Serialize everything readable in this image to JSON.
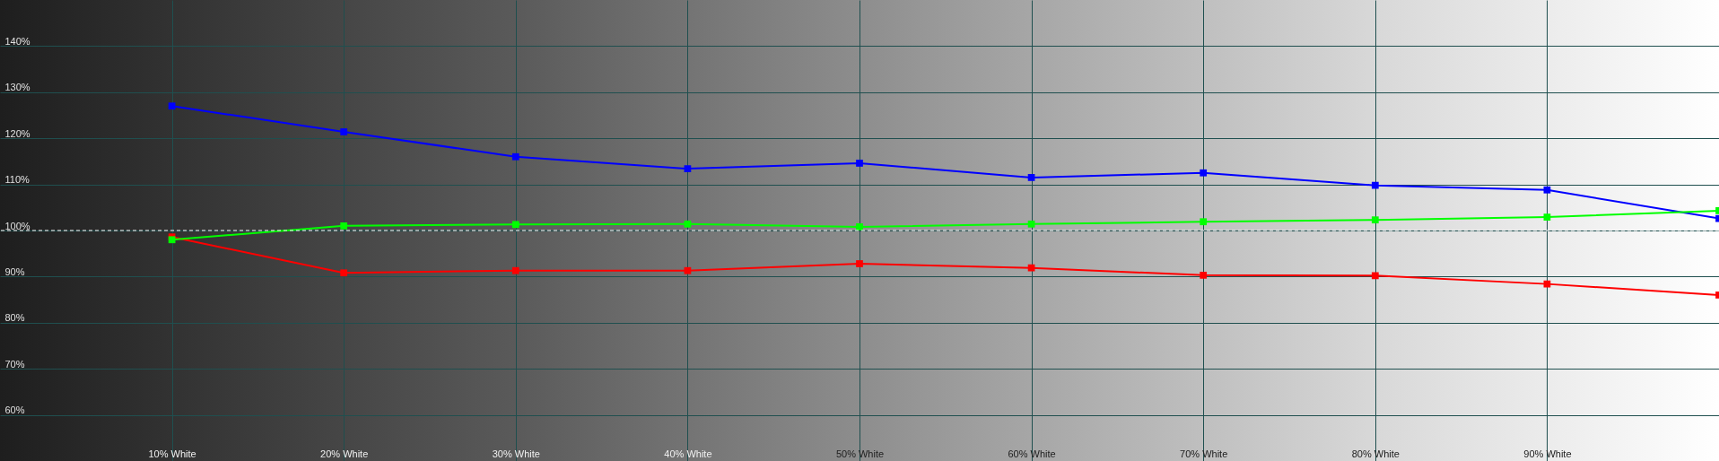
{
  "chart_data": {
    "type": "line",
    "x": [
      10,
      20,
      30,
      40,
      50,
      60,
      70,
      80,
      90,
      100
    ],
    "xlim": [
      0,
      100
    ],
    "xticks": [
      {
        "value": 10,
        "label": "10% White"
      },
      {
        "value": 20,
        "label": "20% White"
      },
      {
        "value": 30,
        "label": "30% White"
      },
      {
        "value": 40,
        "label": "40% White"
      },
      {
        "value": 50,
        "label": "50% White"
      },
      {
        "value": 60,
        "label": "60% White"
      },
      {
        "value": 70,
        "label": "70% White"
      },
      {
        "value": 80,
        "label": "80% White"
      },
      {
        "value": 90,
        "label": "90% White"
      }
    ],
    "ylim": [
      50,
      150
    ],
    "yticks": [
      {
        "value": 60,
        "label": "60%"
      },
      {
        "value": 70,
        "label": "70%"
      },
      {
        "value": 80,
        "label": "80%"
      },
      {
        "value": 90,
        "label": "90%"
      },
      {
        "value": 100,
        "label": "100%"
      },
      {
        "value": 110,
        "label": "110%"
      },
      {
        "value": 120,
        "label": "120%"
      },
      {
        "value": 130,
        "label": "130%"
      },
      {
        "value": 140,
        "label": "140%"
      }
    ],
    "series": [
      {
        "color": "#0000ff",
        "values": [
          127.0,
          121.4,
          116.0,
          113.4,
          114.6,
          111.5,
          112.5,
          109.8,
          108.8,
          102.6
        ]
      },
      {
        "color": "#00ff00",
        "values": [
          98.0,
          101.0,
          101.3,
          101.4,
          100.8,
          101.4,
          101.9,
          102.3,
          102.9,
          104.3
        ]
      },
      {
        "color": "#ff0000",
        "values": [
          98.6,
          90.8,
          91.3,
          91.3,
          92.8,
          91.9,
          90.3,
          90.2,
          88.4,
          86.0
        ]
      }
    ],
    "ref_lines": [
      {
        "axis": "y",
        "value": 100,
        "color": "#ffffff",
        "line_style": "dashed"
      }
    ],
    "grid": true,
    "marker": "square",
    "line_style": "solid"
  }
}
